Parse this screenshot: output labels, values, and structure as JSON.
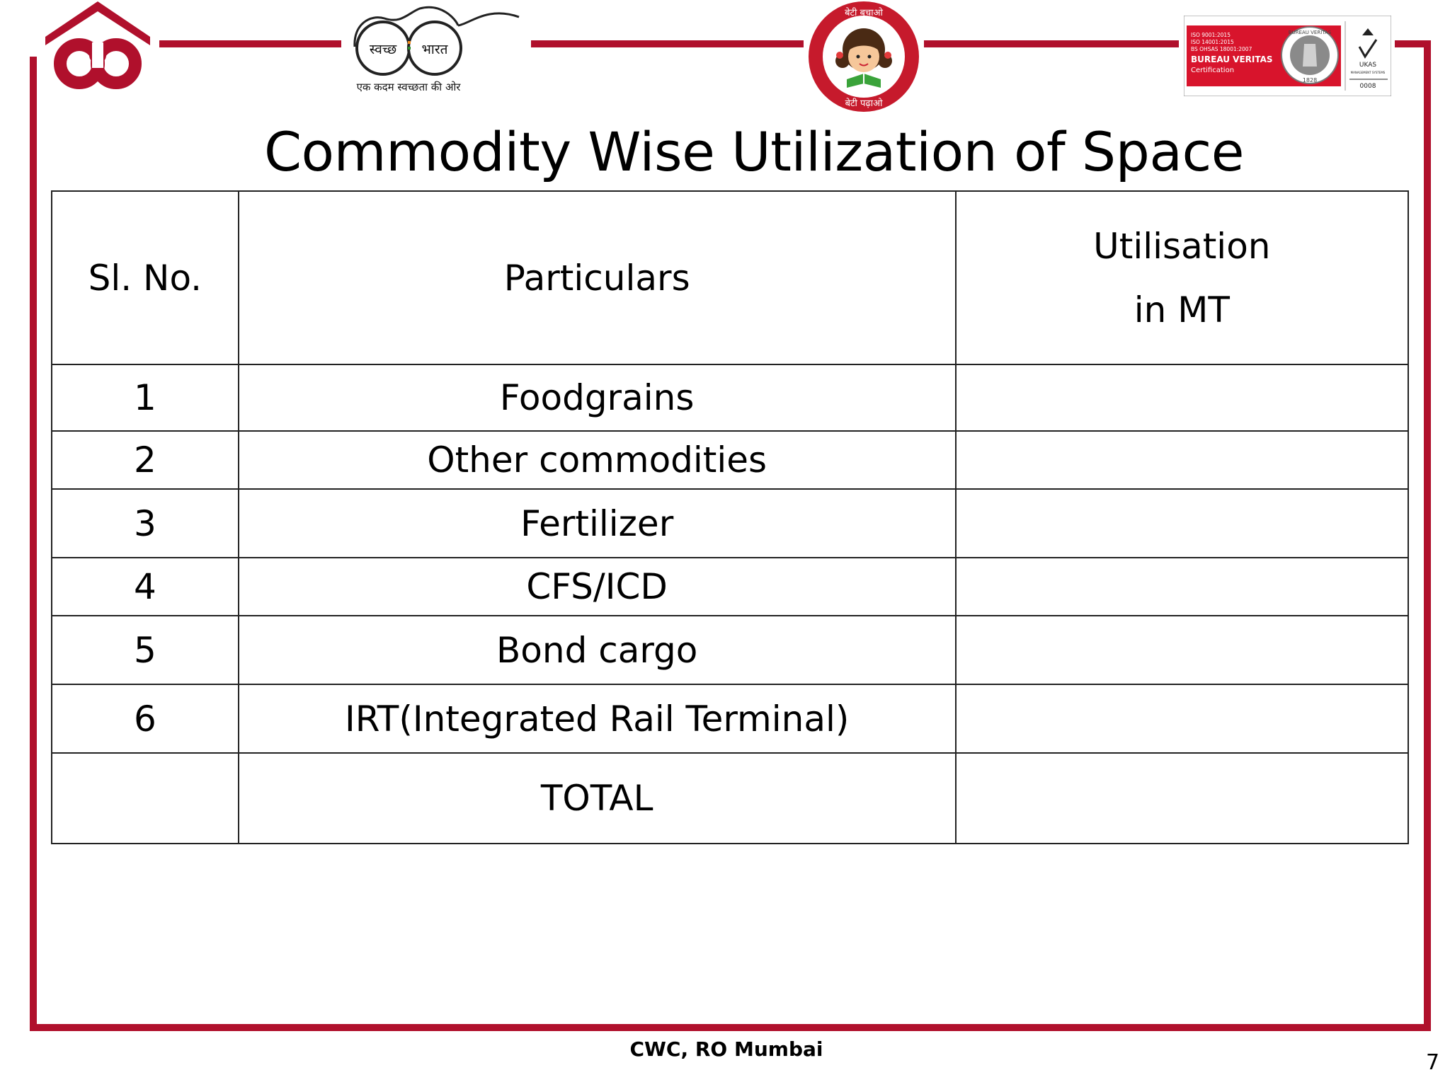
{
  "logos": {
    "swachh_left": "स्वच्छ",
    "swachh_right": "भारत",
    "swachh_tagline": "एक कदम स्वच्छता की ओर",
    "beti_top": "बेटी बचाओ",
    "beti_bottom": "बेटी पढ़ाओ",
    "bv_lines": [
      "ISO 9001:2015",
      "ISO 14001:2015",
      "BS OHSAS 18001:2007",
      "BUREAU VERITAS",
      "Certification"
    ],
    "bv_ring": "BUREAU VERITAS",
    "bv_year": "1828",
    "ukas": "UKAS",
    "ukas_sub": "MANAGEMENT SYSTEMS",
    "ukas_num": "0008"
  },
  "title": "Commodity Wise Utilization of Space",
  "table": {
    "headers": {
      "sl_no": "Sl. No.",
      "particulars": "Particulars",
      "utilisation_line1": "Utilisation",
      "utilisation_line2": "in MT"
    },
    "rows": [
      {
        "sl": "1",
        "particular": "Foodgrains",
        "utilisation": ""
      },
      {
        "sl": "2",
        "particular": "Other commodities",
        "utilisation": ""
      },
      {
        "sl": "3",
        "particular": "Fertilizer",
        "utilisation": ""
      },
      {
        "sl": "4",
        "particular": "CFS/ICD",
        "utilisation": ""
      },
      {
        "sl": "5",
        "particular": "Bond cargo",
        "utilisation": ""
      },
      {
        "sl": "6",
        "particular": "IRT(Integrated Rail Terminal)",
        "utilisation": ""
      },
      {
        "sl": "",
        "particular": "TOTAL",
        "utilisation": ""
      }
    ]
  },
  "footer": "CWC, RO Mumbai",
  "page_number": "7",
  "colors": {
    "frame": "#b0102c",
    "bv_red": "#d8142c"
  }
}
